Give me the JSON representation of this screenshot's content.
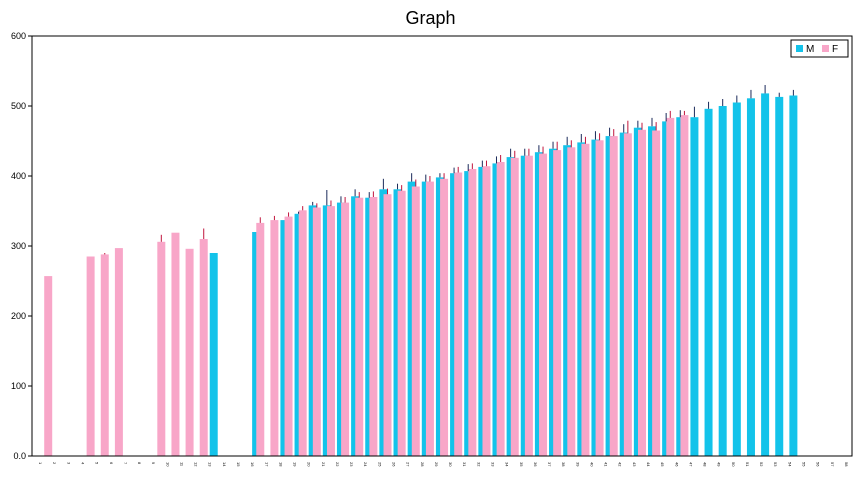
{
  "chart_data": {
    "type": "bar",
    "title": "Graph",
    "xlabel": "",
    "ylabel": "",
    "ylim": [
      0,
      600
    ],
    "yticks": [
      "0.0",
      "100",
      "200",
      "300",
      "400",
      "500",
      "600"
    ],
    "grid": false,
    "legend_position": "top-right",
    "categories": [
      "1",
      "2",
      "3",
      "4",
      "5",
      "6",
      "7",
      "8",
      "9",
      "10",
      "11",
      "12",
      "13",
      "14",
      "15",
      "16",
      "17",
      "18",
      "19",
      "20",
      "21",
      "22",
      "23",
      "24",
      "25",
      "26",
      "27",
      "28",
      "29",
      "30",
      "31",
      "32",
      "33",
      "34",
      "35",
      "36",
      "37",
      "38",
      "39",
      "40",
      "41",
      "42",
      "43",
      "44",
      "45",
      "46",
      "47",
      "48",
      "49",
      "50",
      "51",
      "52",
      "53",
      "54",
      "55",
      "56",
      "57",
      "58"
    ],
    "series": [
      {
        "name": "M",
        "color": "#13c3ea",
        "values": [
          null,
          null,
          null,
          null,
          null,
          null,
          null,
          null,
          null,
          null,
          null,
          null,
          290,
          null,
          null,
          320,
          null,
          337,
          346,
          358,
          358,
          362,
          371,
          369,
          381,
          381,
          392,
          392,
          398,
          404,
          407,
          413,
          418,
          427,
          429,
          434,
          439,
          444,
          448,
          452,
          457,
          462,
          469,
          471,
          478,
          484,
          484,
          496,
          500,
          505,
          511,
          518,
          513,
          515,
          null,
          null,
          null,
          null
        ],
        "errors": [
          0,
          0,
          0,
          0,
          0,
          0,
          0,
          0,
          0,
          0,
          0,
          0,
          0,
          0,
          0,
          0,
          0,
          0,
          3,
          5,
          22,
          9,
          10,
          8,
          15,
          8,
          12,
          10,
          6,
          8,
          10,
          9,
          10,
          12,
          10,
          10,
          10,
          12,
          12,
          12,
          12,
          12,
          10,
          12,
          12,
          10,
          15,
          10,
          10,
          10,
          12,
          12,
          6,
          8,
          0,
          0,
          0,
          0
        ]
      },
      {
        "name": "F",
        "color": "#f8a6c8",
        "values": [
          null,
          257,
          null,
          null,
          285,
          288,
          297,
          null,
          null,
          306,
          319,
          296,
          310,
          null,
          null,
          null,
          333,
          337,
          342,
          351,
          355,
          357,
          362,
          369,
          370,
          374,
          379,
          385,
          392,
          396,
          405,
          410,
          414,
          420,
          426,
          429,
          432,
          437,
          441,
          446,
          451,
          457,
          461,
          466,
          465,
          483,
          487,
          null,
          null,
          null,
          null,
          null,
          null,
          null,
          null,
          null,
          null,
          null
        ],
        "errors": [
          0,
          0,
          0,
          0,
          0,
          2,
          0,
          0,
          0,
          10,
          0,
          0,
          15,
          0,
          0,
          0,
          8,
          6,
          6,
          6,
          6,
          8,
          8,
          8,
          8,
          8,
          8,
          10,
          8,
          8,
          8,
          8,
          8,
          10,
          10,
          10,
          10,
          12,
          10,
          10,
          10,
          10,
          18,
          10,
          12,
          10,
          6,
          0,
          0,
          0,
          0,
          0,
          0,
          0,
          0,
          0,
          0,
          0
        ]
      }
    ]
  }
}
